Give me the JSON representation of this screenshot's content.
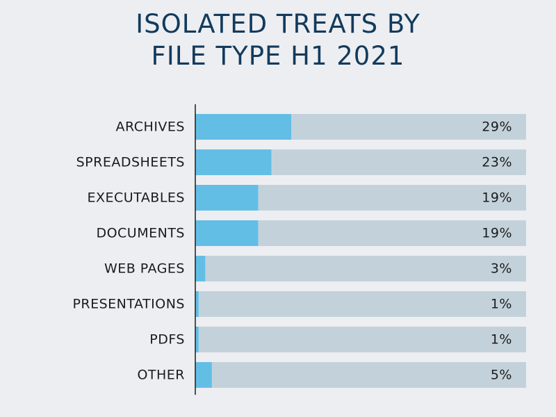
{
  "colors": {
    "background": "#edeef2",
    "title": "#123b5c",
    "bar_value": "#63bee6",
    "bar_track": "#c3d2da",
    "axis": "#1b1b1b",
    "text": "#1b1b1b"
  },
  "chart_data": {
    "type": "bar",
    "orientation": "horizontal",
    "title_lines": [
      "ISOLATED TREATS BY",
      "FILE TYPE H1 2021"
    ],
    "categories": [
      "ARCHIVES",
      "SPREADSHEETS",
      "EXECUTABLES",
      "DOCUMENTS",
      "WEB PAGES",
      "PRESENTATIONS",
      "PDFS",
      "OTHER"
    ],
    "values": [
      29,
      23,
      19,
      19,
      3,
      1,
      1,
      5
    ],
    "value_labels": [
      "29%",
      "23%",
      "19%",
      "19%",
      "3%",
      "1%",
      "1%",
      "5%"
    ],
    "value_unit": "%",
    "xlim": [
      0,
      100
    ],
    "xlabel": "",
    "ylabel": "",
    "grid": false,
    "legend": "none"
  }
}
